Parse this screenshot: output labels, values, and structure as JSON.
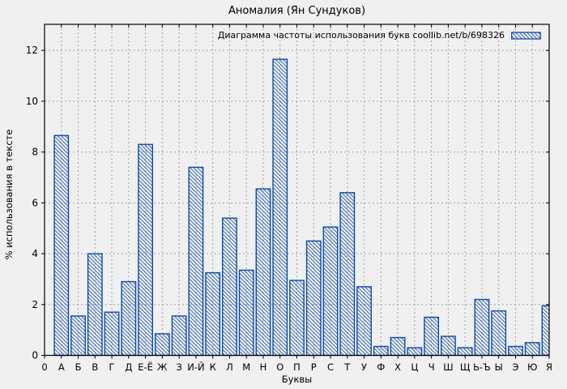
{
  "page": {
    "background": "#f0f0f0"
  },
  "chart_data": {
    "type": "bar",
    "title": "Аномалия (Ян Сундуков)",
    "legend_label": "Диаграмма частоты использования букв coollib.net/b/698326",
    "legend_position": "top-right-inside",
    "xlabel": "Буквы",
    "ylabel": "% использования в тексте",
    "x_origin_label": "0",
    "categories": [
      "А",
      "Б",
      "В",
      "Г",
      "Д",
      "Е-Ё",
      "Ж",
      "З",
      "И-Й",
      "К",
      "Л",
      "М",
      "Н",
      "О",
      "П",
      "Р",
      "С",
      "Т",
      "У",
      "Ф",
      "Х",
      "Ц",
      "Ч",
      "Ш",
      "Щ",
      "Ь-Ъ",
      "Ы",
      "Э",
      "Ю",
      "Я"
    ],
    "values": [
      8.65,
      1.55,
      4.0,
      1.7,
      2.9,
      8.3,
      0.85,
      1.55,
      7.4,
      3.25,
      5.4,
      3.35,
      6.55,
      11.65,
      2.95,
      4.5,
      5.05,
      6.4,
      2.7,
      0.35,
      0.7,
      0.3,
      1.5,
      0.75,
      0.3,
      2.2,
      1.75,
      0.35,
      0.5,
      1.95
    ],
    "yticks": [
      0,
      2,
      4,
      6,
      8,
      10,
      12
    ],
    "ylim": [
      0,
      13.05
    ],
    "grid": true,
    "bar_style": "diagonal-hatch",
    "colors": {
      "bar_outline": "#0d4aa8",
      "hatch": "#0d4aa8",
      "background": "#f0f0f0",
      "grid": "#a3a3a3",
      "axis": "#000000",
      "text": "#000000"
    }
  }
}
